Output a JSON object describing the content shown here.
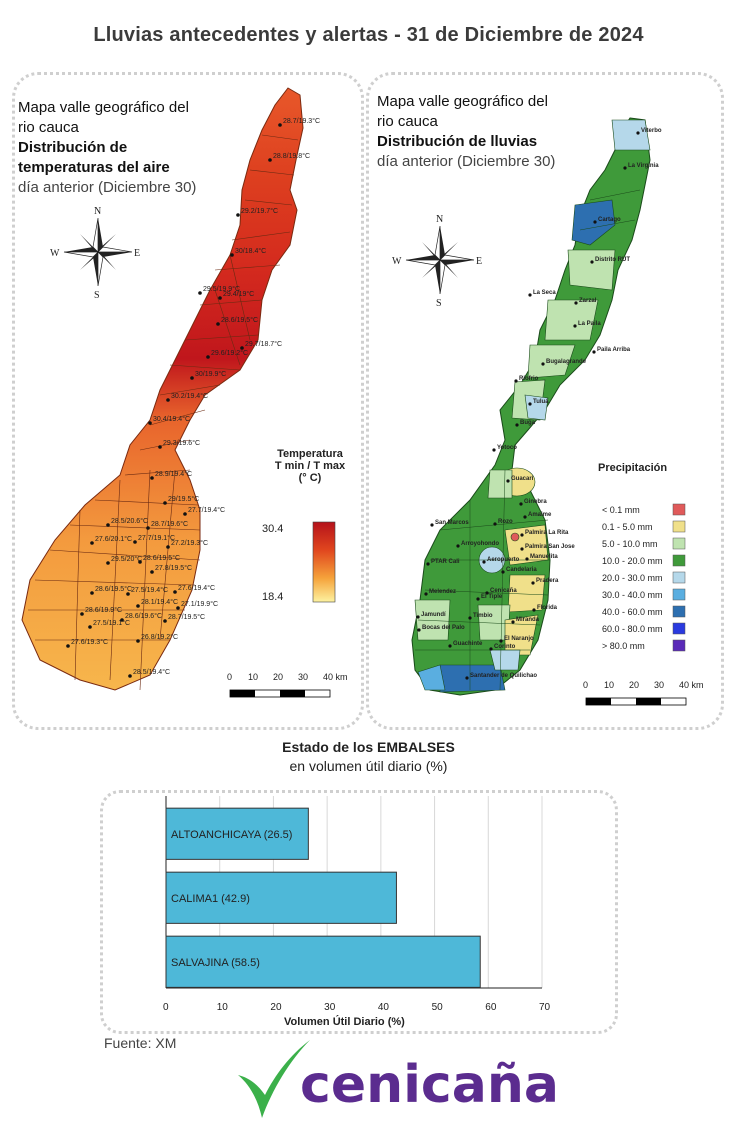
{
  "title": "Lluvias antecedentes y alertas - 31 de Diciembre de 2024",
  "temp_map": {
    "title_lines": [
      "Mapa valle geográfico del",
      "rio cauca"
    ],
    "subtitle_lines": [
      "Distribución de",
      "temperaturas del aire"
    ],
    "date_line": "día anterior (Diciembre 30)",
    "legend_title_lines": [
      "Temperatura",
      "T min / T max",
      "(° C)"
    ],
    "legend_max": "30.4",
    "legend_min": "18.4",
    "compass": {
      "n": "N",
      "s": "S",
      "e": "E",
      "w": "W"
    },
    "scale_labels": [
      "0",
      "10",
      "20",
      "30",
      "40 km"
    ],
    "stations": [
      "28.7/19.3°C",
      "28.8/19.8°C",
      "29.2/19.7°C",
      "30/18.4°C",
      "29.5/19.9°C",
      "29.4/19°C",
      "28.6/19.5°C",
      "29.7/18.7°C",
      "29.6/19.2°C",
      "30/19.9°C",
      "30.2/19.4°C",
      "30.4/19.4°C",
      "29.3/19.6°C",
      "28.9/19.4°C",
      "29/19.5°C",
      "27.7/19.4°C",
      "28.5/20.6°C",
      "28.7/19.6°C",
      "27.6/20.1°C",
      "27.7/19.1°C",
      "27.2/19.3°C",
      "29.5/20°C",
      "28.6/19.5°C",
      "27.8/19.5°C",
      "28.6/19.5°C",
      "27.5/19.4°C",
      "27.6/19.4°C",
      "28.1/19.4°C",
      "27.1/19.9°C",
      "28.6/19.9°C",
      "28.6/19.6°C",
      "28.7/19.5°C",
      "27.5/19.1°C",
      "26.8/19.2°C",
      "27.6/19.3°C",
      "28.5/19.4°C"
    ]
  },
  "rain_map": {
    "title_lines": [
      "Mapa valle geográfico del",
      "rio cauca"
    ],
    "subtitle": "Distribución de lluvias",
    "date_line": "día anterior (Diciembre 30)",
    "compass": {
      "n": "N",
      "s": "S",
      "e": "E",
      "w": "W"
    },
    "legend_title": "Precipitación",
    "legend": [
      {
        "label": "< 0.1 mm",
        "color": "#e05a5a"
      },
      {
        "label": "0.1 - 5.0 mm",
        "color": "#f0e08a"
      },
      {
        "label": "5.0 - 10.0 mm",
        "color": "#bfe3b0"
      },
      {
        "label": "10.0 - 20.0 mm",
        "color": "#3f9a3a"
      },
      {
        "label": "20.0 - 30.0 mm",
        "color": "#b5d8ea"
      },
      {
        "label": "30.0 - 40.0 mm",
        "color": "#5aaee0"
      },
      {
        "label": "40.0 - 60.0 mm",
        "color": "#2d6fb0"
      },
      {
        "label": "60.0 - 80.0 mm",
        "color": "#2a3adf"
      },
      {
        "label": "> 80.0 mm",
        "color": "#5a2ab8"
      }
    ],
    "scale_labels": [
      "0",
      "10",
      "20",
      "30",
      "40 km"
    ],
    "places": [
      "Viterbo",
      "La Virginia",
      "Cartago",
      "Distrito RUT",
      "La Seca",
      "Zarzal",
      "La Paila",
      "Paila Arriba",
      "Bugalagrande",
      "Riofrio",
      "Tuluá",
      "Buga",
      "Yotoco",
      "Guacarí",
      "Ginebra",
      "San Marcos",
      "Rozo",
      "Amaime",
      "Palmira La Rita",
      "Arroyohondo",
      "Palmira San Jose",
      "Aeropuerto",
      "Manuelita",
      "Candelaria",
      "Pradera",
      "PTAR Cali",
      "Melendez",
      "Cenicaña",
      "El Tiple",
      "Florida",
      "Jamundí",
      "Bocas del Palo",
      "Guachinte",
      "Timbio",
      "El Naranjo",
      "Miranda",
      "Corinto",
      "Santander de Quilichao"
    ]
  },
  "reservoirs": {
    "title": "Estado de los EMBALSES",
    "subtitle": "en volumen útil diario (%)",
    "source": "Fuente: XM"
  },
  "chart_data": {
    "type": "bar",
    "orientation": "horizontal",
    "categories": [
      "ALTOANCHICAYA (26.5)",
      "CALIMA1 (42.9)",
      "SALVAJINA (58.5)"
    ],
    "values": [
      26.5,
      42.9,
      58.5
    ],
    "xlabel": "Volumen Útil Diario (%)",
    "xlim": [
      0,
      70
    ],
    "xticks": [
      "0",
      "10",
      "20",
      "30",
      "40",
      "50",
      "60",
      "70"
    ],
    "grid": true,
    "bar_color": "#4eb8d8"
  },
  "logo": {
    "text": "cenicaña",
    "colors": {
      "check": "#3bb04a",
      "text": "#5b2c8f"
    }
  }
}
